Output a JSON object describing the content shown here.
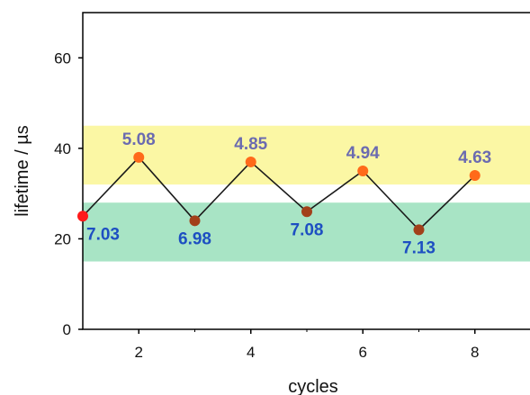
{
  "chart_data": {
    "type": "line",
    "title": "",
    "xlabel": "cycles",
    "ylabel": "lifetime / µs",
    "xlim": [
      1,
      9
    ],
    "ylim": [
      0,
      70
    ],
    "x_ticks": [
      2,
      4,
      6,
      8
    ],
    "y_ticks": [
      0,
      20,
      40,
      60
    ],
    "grid": false,
    "bands": [
      {
        "y0": 32,
        "y1": 45,
        "color": "#fbf7a4"
      },
      {
        "y0": 15,
        "y1": 28,
        "color": "#a8e4c5"
      }
    ],
    "line_color": "#1a1a1a",
    "series": [
      {
        "x": [
          1,
          2,
          3,
          4,
          5,
          6,
          7,
          8
        ],
        "y": [
          25,
          38,
          24,
          37,
          26,
          35,
          22,
          34
        ],
        "labels": [
          "7.03",
          "5.08",
          "6.98",
          "4.85",
          "7.08",
          "4.94",
          "7.13",
          "4.63"
        ],
        "label_positions": [
          "below",
          "above",
          "below",
          "above",
          "below",
          "above",
          "below",
          "above"
        ],
        "marker_colors": [
          "#ff1a1a",
          "#ff6a1a",
          "#a2401a",
          "#ff6a1a",
          "#a2401a",
          "#ff6a1a",
          "#a2401a",
          "#ff6a1a"
        ]
      }
    ],
    "label_colors": {
      "above": "#6b6bb0",
      "below": "#1d4fc2"
    }
  }
}
